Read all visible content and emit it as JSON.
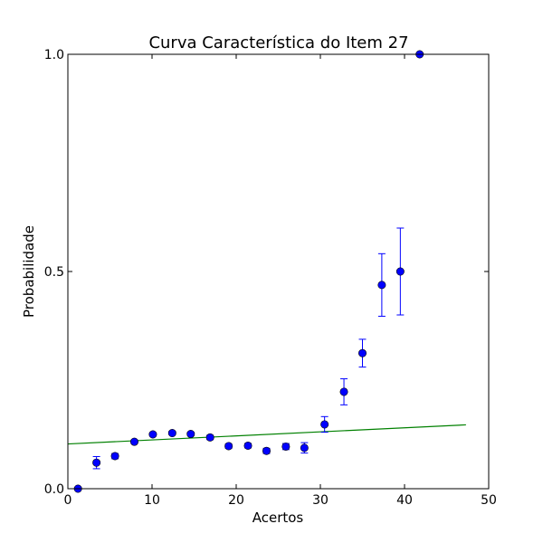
{
  "chart_data": {
    "type": "scatter",
    "title": "Curva Característica do Item 27",
    "xlabel": "Acertos",
    "ylabel": "Probabilidade",
    "xlim": [
      0,
      50
    ],
    "ylim": [
      0,
      1
    ],
    "xticks": [
      0,
      10,
      20,
      30,
      40,
      50
    ],
    "xtick_labels": [
      "0",
      "10",
      "20",
      "30",
      "40",
      "50"
    ],
    "yticks": [
      0,
      0.5,
      1
    ],
    "ytick_labels": [
      "0.0",
      "0.5",
      "1.0"
    ],
    "grid": false,
    "legend": "none",
    "points": {
      "color": "#0000ff",
      "x": [
        1.2,
        3.4,
        5.6,
        7.9,
        10.1,
        12.4,
        14.6,
        16.9,
        19.1,
        21.4,
        23.6,
        25.9,
        28.1,
        30.5,
        32.8,
        35.0,
        37.3,
        39.5,
        41.8
      ],
      "y": [
        0.0,
        0.06,
        0.075,
        0.108,
        0.125,
        0.128,
        0.126,
        0.118,
        0.098,
        0.099,
        0.087,
        0.097,
        0.094,
        0.148,
        0.223,
        0.312,
        0.469,
        0.5,
        1.0
      ],
      "err": [
        0.0,
        0.014,
        0.006,
        0.004,
        0.004,
        0.004,
        0.004,
        0.005,
        0.005,
        0.005,
        0.006,
        0.007,
        0.012,
        0.018,
        0.03,
        0.032,
        0.072,
        0.1,
        0.0
      ]
    },
    "fit_line": {
      "color": "#008000",
      "x": [
        0,
        47.3
      ],
      "y": [
        0.103,
        0.147
      ]
    }
  }
}
